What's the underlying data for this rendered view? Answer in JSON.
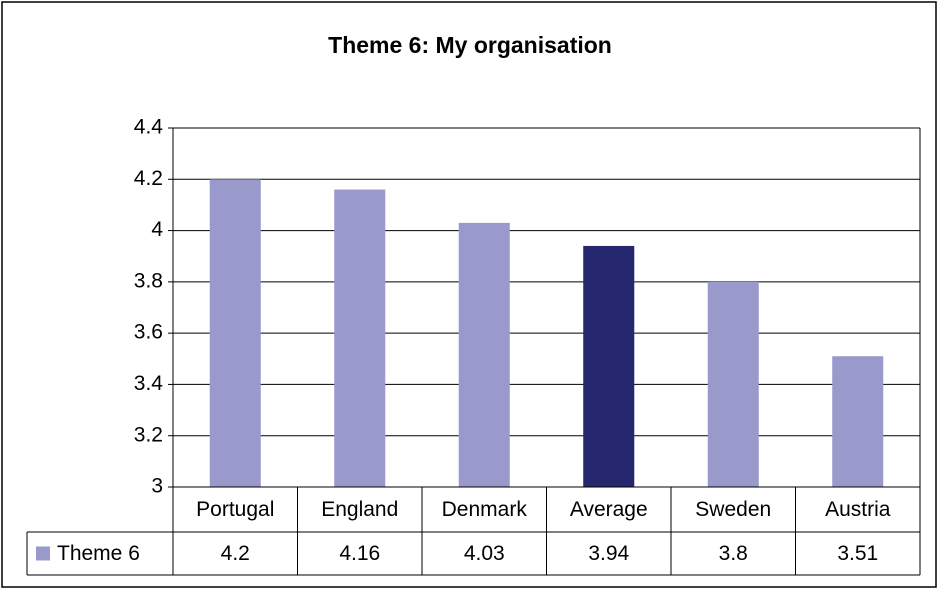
{
  "chart_data": {
    "type": "bar",
    "title": "Theme 6: My organisation",
    "categories": [
      "Portugal",
      "England",
      "Denmark",
      "Average",
      "Sweden",
      "Austria"
    ],
    "series": [
      {
        "name": "Theme 6",
        "color": "#9999cc",
        "colors": [
          "#9999cc",
          "#9999cc",
          "#9999cc",
          "#26276e",
          "#9999cc",
          "#9999cc"
        ],
        "values": [
          4.2,
          4.16,
          4.03,
          3.94,
          3.8,
          3.51
        ]
      }
    ],
    "ylim": [
      3,
      4.4
    ],
    "yticks": [
      3,
      3.2,
      3.4,
      3.6,
      3.8,
      4,
      4.2,
      4.4
    ],
    "grid": true,
    "data_table": true
  }
}
